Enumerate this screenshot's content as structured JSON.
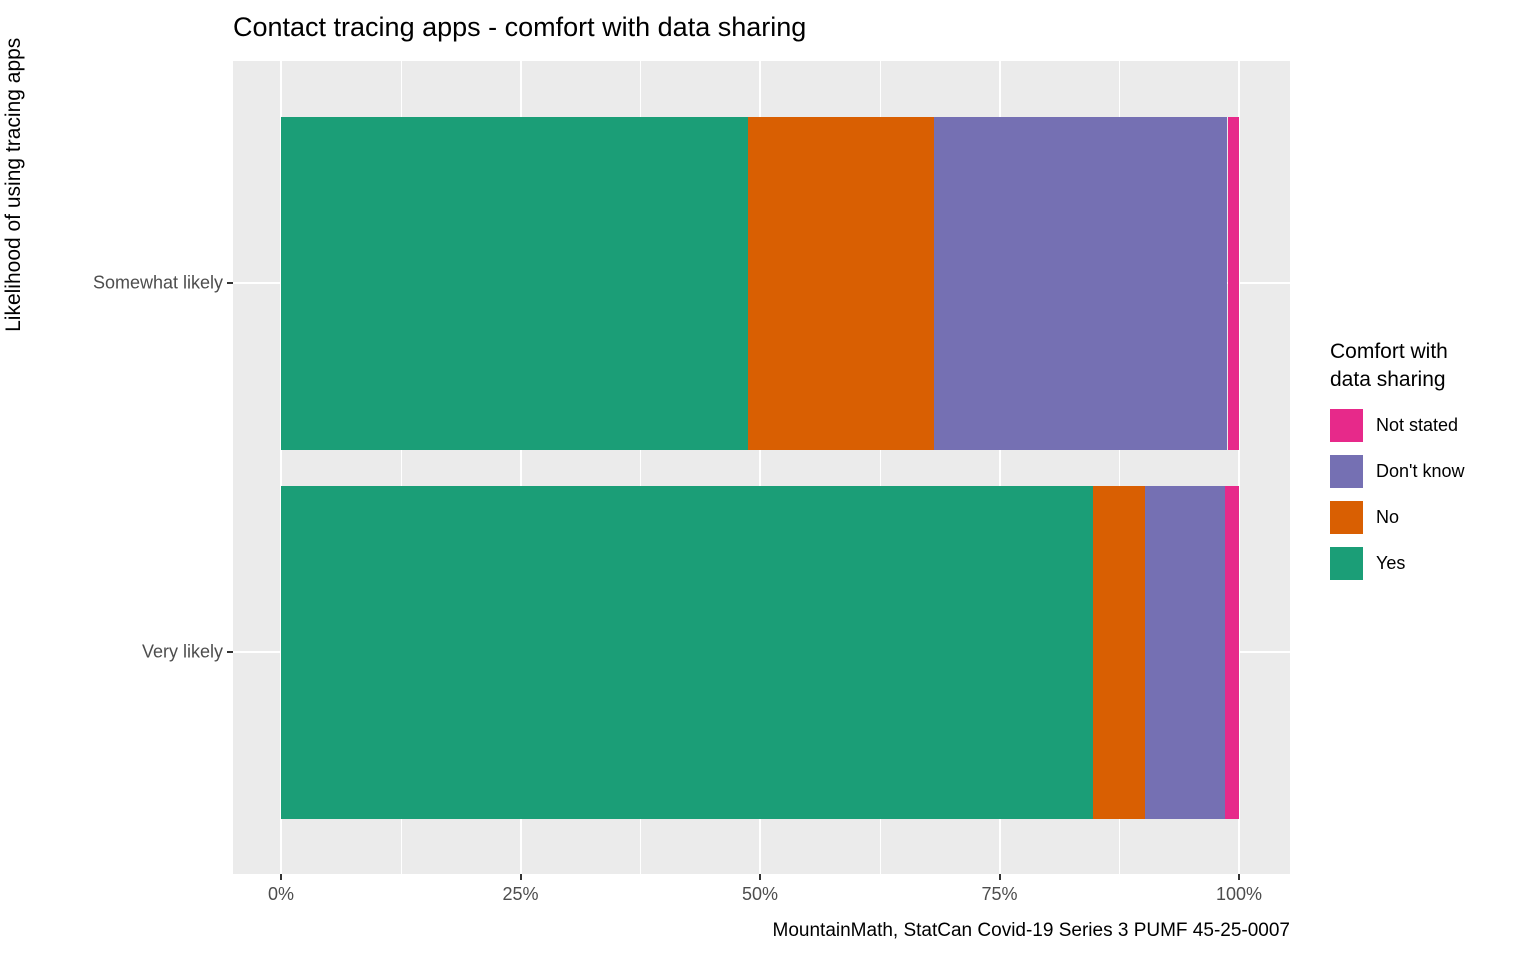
{
  "chart_data": {
    "type": "bar",
    "orientation": "horizontal",
    "stacked": true,
    "title": "Contact tracing apps - comfort with data sharing",
    "ylabel": "Likelihood of using tracing apps",
    "caption": "MountainMath, StatCan Covid-19 Series 3 PUMF 45-25-0007",
    "categories": [
      "Somewhat likely",
      "Very likely"
    ],
    "series": [
      {
        "name": "Yes",
        "color": "#1B9E77",
        "values": [
          48.7,
          84.8
        ]
      },
      {
        "name": "No",
        "color": "#D95F02",
        "values": [
          19.5,
          5.4
        ]
      },
      {
        "name": "Don't know",
        "color": "#7570B3",
        "values": [
          30.6,
          8.3
        ]
      },
      {
        "name": "Not stated",
        "color": "#E7298A",
        "values": [
          1.2,
          1.5
        ]
      }
    ],
    "xlim": [
      0,
      100
    ],
    "x_ticks": [
      {
        "value": 0,
        "label": "0%"
      },
      {
        "value": 25,
        "label": "25%"
      },
      {
        "value": 50,
        "label": "50%"
      },
      {
        "value": 75,
        "label": "75%"
      },
      {
        "value": 100,
        "label": "100%"
      }
    ],
    "x_minor_ticks": [
      12.5,
      37.5,
      62.5,
      87.5
    ],
    "grid": true,
    "panel_background": "#EBEBEB",
    "gridline_color": "#ffffff",
    "legend_position": "right"
  },
  "legend": {
    "title": "Comfort with\ndata sharing",
    "items": [
      {
        "label": "Not stated",
        "color": "#E7298A"
      },
      {
        "label": "Don't know",
        "color": "#7570B3"
      },
      {
        "label": "No",
        "color": "#D95F02"
      },
      {
        "label": "Yes",
        "color": "#1B9E77"
      }
    ]
  }
}
